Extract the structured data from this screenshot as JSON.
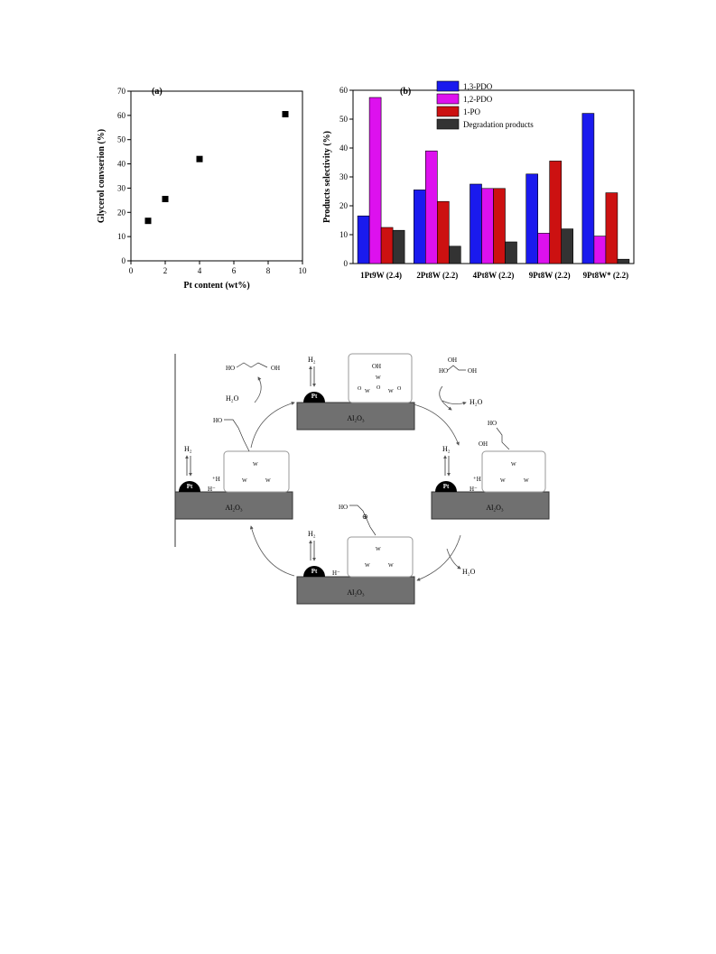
{
  "chart_data": [
    {
      "type": "scatter",
      "panel_label": "(a)",
      "xlabel": "Pt content (wt%)",
      "ylabel": "Glycerol convserion (%)",
      "xlim": [
        0,
        10
      ],
      "ylim": [
        0,
        70
      ],
      "x_ticks": [
        "0",
        "2",
        "4",
        "6",
        "8",
        "10"
      ],
      "y_ticks": [
        "0",
        "10",
        "20",
        "30",
        "40",
        "50",
        "60",
        "70"
      ],
      "points": [
        {
          "x": 1,
          "y": 16.5
        },
        {
          "x": 2,
          "y": 25.5
        },
        {
          "x": 4,
          "y": 42
        },
        {
          "x": 9,
          "y": 60.5
        }
      ]
    },
    {
      "type": "bar",
      "panel_label": "(b)",
      "ylabel": "Products selectivity (%)",
      "ylim": [
        0,
        60
      ],
      "y_ticks": [
        "0",
        "10",
        "20",
        "30",
        "40",
        "50",
        "60"
      ],
      "categories": [
        "1Pt9W (2.4)",
        "2Pt8W (2.2)",
        "4Pt8W (2.2)",
        "9Pt8W (2.2)",
        "9Pt8W* (2.2)"
      ],
      "legend_position": "top-right",
      "series": [
        {
          "name": "1,3-PDO",
          "color": "#1a1aee",
          "values": [
            16.5,
            25.5,
            27.5,
            31,
            52
          ]
        },
        {
          "name": "1,2-PDO",
          "color": "#dd11ee",
          "values": [
            57.5,
            39,
            26,
            10.5,
            9.5
          ]
        },
        {
          "name": "1-PO",
          "color": "#cc1111",
          "values": [
            12.5,
            21.5,
            26,
            35.5,
            24.5
          ]
        },
        {
          "name": "Degradation products",
          "color": "#333333",
          "values": [
            11.5,
            6,
            7.5,
            12,
            1.5
          ]
        }
      ]
    }
  ],
  "scheme": {
    "pt_label": "Pt",
    "support_label": "Al₂O₃",
    "h2": "H₂",
    "h2o": "H₂O",
    "h_minus": "H⁻",
    "h_plus": "⁺H",
    "w": "W",
    "o": "O",
    "oh": "OH",
    "ho": "HO",
    "plus": "⊕"
  }
}
